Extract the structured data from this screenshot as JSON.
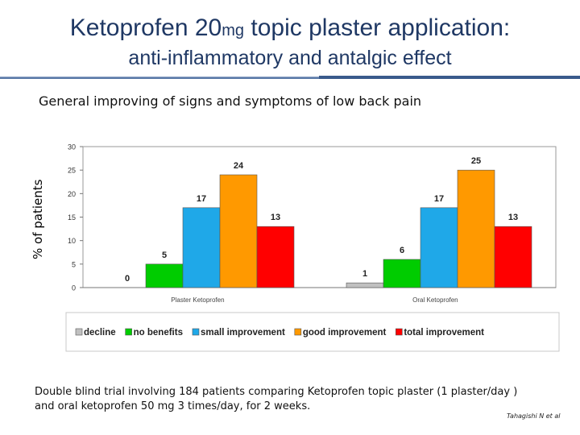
{
  "header": {
    "title_part1": "Ketoprofen 20",
    "title_unit": "mg",
    "title_part2": " topic plaster application:",
    "subtitle": "anti-inflammatory and antalgic effect"
  },
  "caption": "General improving of signs and symptoms of low back pain",
  "footnote": "Double blind trial involving 184 patients comparing Ketoprofen topic plaster  (1 plaster/day ) and  oral ketoprofen 50 mg  3 times/day, for 2 weeks.",
  "credit": "Tahagishi N et al",
  "colors": {
    "decline": "#c0c0c0",
    "no_benefits": "#00cc00",
    "small_improvement": "#1fa8e8",
    "good_improvement": "#ff9900",
    "total_improvement": "#ff0000"
  },
  "chart_data": {
    "type": "bar",
    "title": "General improving of signs and symptoms of low back pain",
    "xlabel": "",
    "ylabel": "% of patients",
    "ylim": [
      0,
      30
    ],
    "yticks": [
      0,
      5,
      10,
      15,
      20,
      25,
      30
    ],
    "grid": false,
    "legend_position": "bottom",
    "categories": [
      "Plaster Ketoprofen",
      "Oral Ketoprofen"
    ],
    "series": [
      {
        "name": "decline",
        "color_key": "decline",
        "values": [
          0,
          1
        ]
      },
      {
        "name": "no benefits",
        "color_key": "no_benefits",
        "values": [
          5,
          6
        ]
      },
      {
        "name": "small improvement",
        "color_key": "small_improvement",
        "values": [
          17,
          17
        ]
      },
      {
        "name": "good improvement",
        "color_key": "good_improvement",
        "values": [
          24,
          25
        ]
      },
      {
        "name": "total improvement",
        "color_key": "total_improvement",
        "values": [
          13,
          13
        ]
      }
    ]
  }
}
